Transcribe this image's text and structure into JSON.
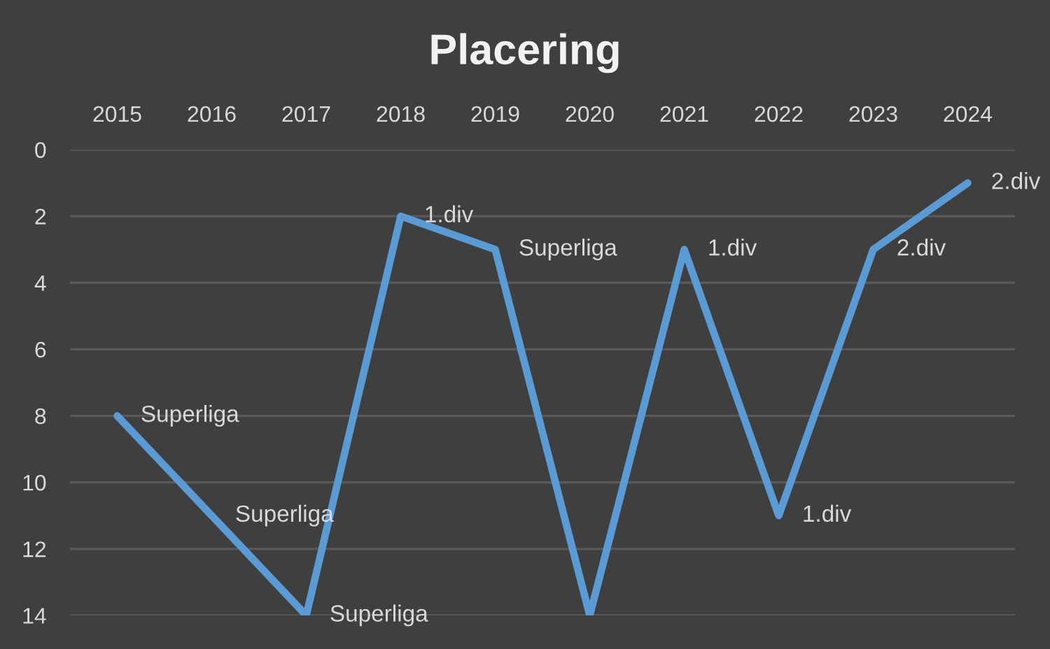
{
  "chart_data": {
    "type": "line",
    "title": "Placering",
    "categories": [
      "2015",
      "2016",
      "2017",
      "2018",
      "2019",
      "2020",
      "2021",
      "2022",
      "2023",
      "2024"
    ],
    "series": [
      {
        "color": "#5b9bd5",
        "values": [
          8,
          11,
          14,
          2,
          3,
          14,
          3,
          11,
          3,
          1
        ]
      }
    ],
    "annotations": [
      {
        "text": "Superliga",
        "x": "2015",
        "y": 8
      },
      {
        "text": "Superliga",
        "x": "2016",
        "y": 11
      },
      {
        "text": "Superliga",
        "x": "2017",
        "y": 14
      },
      {
        "text": "1.div",
        "x": "2018",
        "y": 2
      },
      {
        "text": "Superliga",
        "x": "2019",
        "y": 3
      },
      {
        "text": "1.div",
        "x": "2021",
        "y": 3
      },
      {
        "text": "1.div",
        "x": "2022",
        "y": 11
      },
      {
        "text": "2.div",
        "x": "2023",
        "y": 3
      },
      {
        "text": "2.div",
        "x": "2024",
        "y": 1
      }
    ],
    "ylim": [
      14,
      0
    ],
    "yticks": [
      0,
      2,
      4,
      6,
      8,
      10,
      12,
      14
    ],
    "grid": "y",
    "line_style": "solid"
  }
}
